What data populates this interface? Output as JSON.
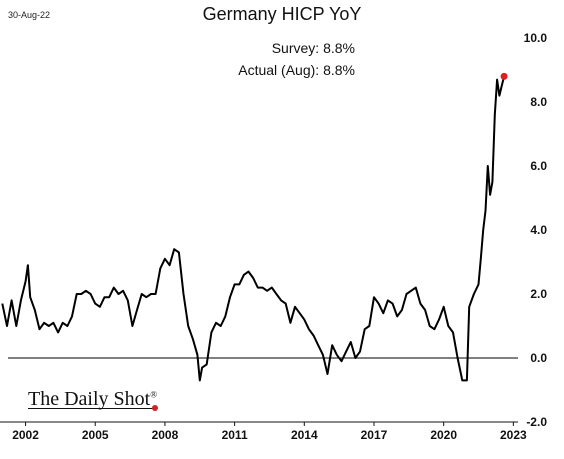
{
  "date_label": "30-Aug-22",
  "logo": {
    "text": "The Daily Shot",
    "mark": "®"
  },
  "colors": {
    "line": "#000000",
    "last_point": "#e02020",
    "zero_line": "#000000"
  },
  "chart_data": {
    "type": "line",
    "title": "Germany HICP YoY",
    "annotations": [
      {
        "label": "Survey:",
        "value": "8.8%"
      },
      {
        "label": "Actual (Aug):",
        "value": "8.8%"
      }
    ],
    "xlabel": "",
    "ylabel": "",
    "xlim": [
      2000.9,
      2023.2
    ],
    "ylim": [
      -2.0,
      10.0
    ],
    "x_ticks": [
      2002,
      2005,
      2008,
      2011,
      2014,
      2017,
      2020,
      2023
    ],
    "x_tick_labels": [
      "2002",
      "2005",
      "2008",
      "2011",
      "2014",
      "2017",
      "2020",
      "2023"
    ],
    "y_ticks": [
      -2.0,
      0.0,
      2.0,
      4.0,
      6.0,
      8.0,
      10.0
    ],
    "y_tick_labels": [
      "-2.0",
      "0.0",
      "2.0",
      "4.0",
      "6.0",
      "8.0",
      "10.0"
    ],
    "axis_position": "right",
    "grid": false,
    "zero_line": true,
    "highlight_last_point": true,
    "series": [
      {
        "x": [
          2001.0,
          2001.2,
          2001.4,
          2001.6,
          2001.8,
          2002.0,
          2002.1,
          2002.2,
          2002.4,
          2002.6,
          2002.8,
          2003.0,
          2003.2,
          2003.4,
          2003.6,
          2003.8,
          2004.0,
          2004.2,
          2004.4,
          2004.6,
          2004.8,
          2005.0,
          2005.2,
          2005.4,
          2005.6,
          2005.8,
          2006.0,
          2006.2,
          2006.4,
          2006.6,
          2006.8,
          2007.0,
          2007.2,
          2007.4,
          2007.6,
          2007.8,
          2008.0,
          2008.2,
          2008.4,
          2008.6,
          2008.8,
          2009.0,
          2009.2,
          2009.4,
          2009.5,
          2009.6,
          2009.8,
          2010.0,
          2010.2,
          2010.4,
          2010.6,
          2010.8,
          2011.0,
          2011.2,
          2011.4,
          2011.6,
          2011.8,
          2012.0,
          2012.2,
          2012.4,
          2012.6,
          2012.8,
          2013.0,
          2013.2,
          2013.4,
          2013.6,
          2013.8,
          2014.0,
          2014.2,
          2014.4,
          2014.6,
          2014.8,
          2015.0,
          2015.2,
          2015.4,
          2015.6,
          2015.8,
          2016.0,
          2016.2,
          2016.4,
          2016.6,
          2016.8,
          2017.0,
          2017.2,
          2017.4,
          2017.6,
          2017.8,
          2018.0,
          2018.2,
          2018.4,
          2018.6,
          2018.8,
          2019.0,
          2019.2,
          2019.4,
          2019.6,
          2019.8,
          2020.0,
          2020.2,
          2020.4,
          2020.6,
          2020.8,
          2021.0,
          2021.1,
          2021.3,
          2021.5,
          2021.6,
          2021.7,
          2021.8,
          2021.9,
          2022.0,
          2022.1,
          2022.2,
          2022.3,
          2022.4,
          2022.5,
          2022.6
        ],
        "values": [
          1.7,
          1.0,
          1.8,
          1.0,
          1.8,
          2.4,
          2.9,
          1.9,
          1.5,
          0.9,
          1.1,
          1.0,
          1.1,
          0.8,
          1.1,
          1.0,
          1.3,
          2.0,
          2.0,
          2.1,
          2.0,
          1.7,
          1.6,
          1.9,
          1.9,
          2.2,
          2.0,
          2.1,
          1.8,
          1.0,
          1.5,
          2.0,
          1.9,
          2.0,
          2.0,
          2.8,
          3.1,
          2.9,
          3.4,
          3.3,
          2.0,
          1.0,
          0.6,
          0.1,
          -0.7,
          -0.3,
          -0.2,
          0.8,
          1.1,
          1.0,
          1.3,
          1.9,
          2.3,
          2.3,
          2.6,
          2.7,
          2.5,
          2.2,
          2.2,
          2.1,
          2.2,
          2.0,
          1.8,
          1.7,
          1.1,
          1.6,
          1.4,
          1.2,
          0.9,
          0.7,
          0.4,
          0.1,
          -0.5,
          0.4,
          0.1,
          -0.1,
          0.2,
          0.5,
          0.0,
          0.2,
          0.9,
          1.0,
          1.9,
          1.7,
          1.4,
          1.8,
          1.7,
          1.3,
          1.5,
          2.0,
          2.1,
          2.2,
          1.7,
          1.5,
          1.0,
          0.9,
          1.2,
          1.6,
          1.0,
          0.8,
          0.0,
          -0.7,
          -0.7,
          1.6,
          2.0,
          2.3,
          3.1,
          4.0,
          4.6,
          6.0,
          5.1,
          5.5,
          7.6,
          8.7,
          8.2,
          8.5,
          8.8
        ]
      }
    ]
  }
}
